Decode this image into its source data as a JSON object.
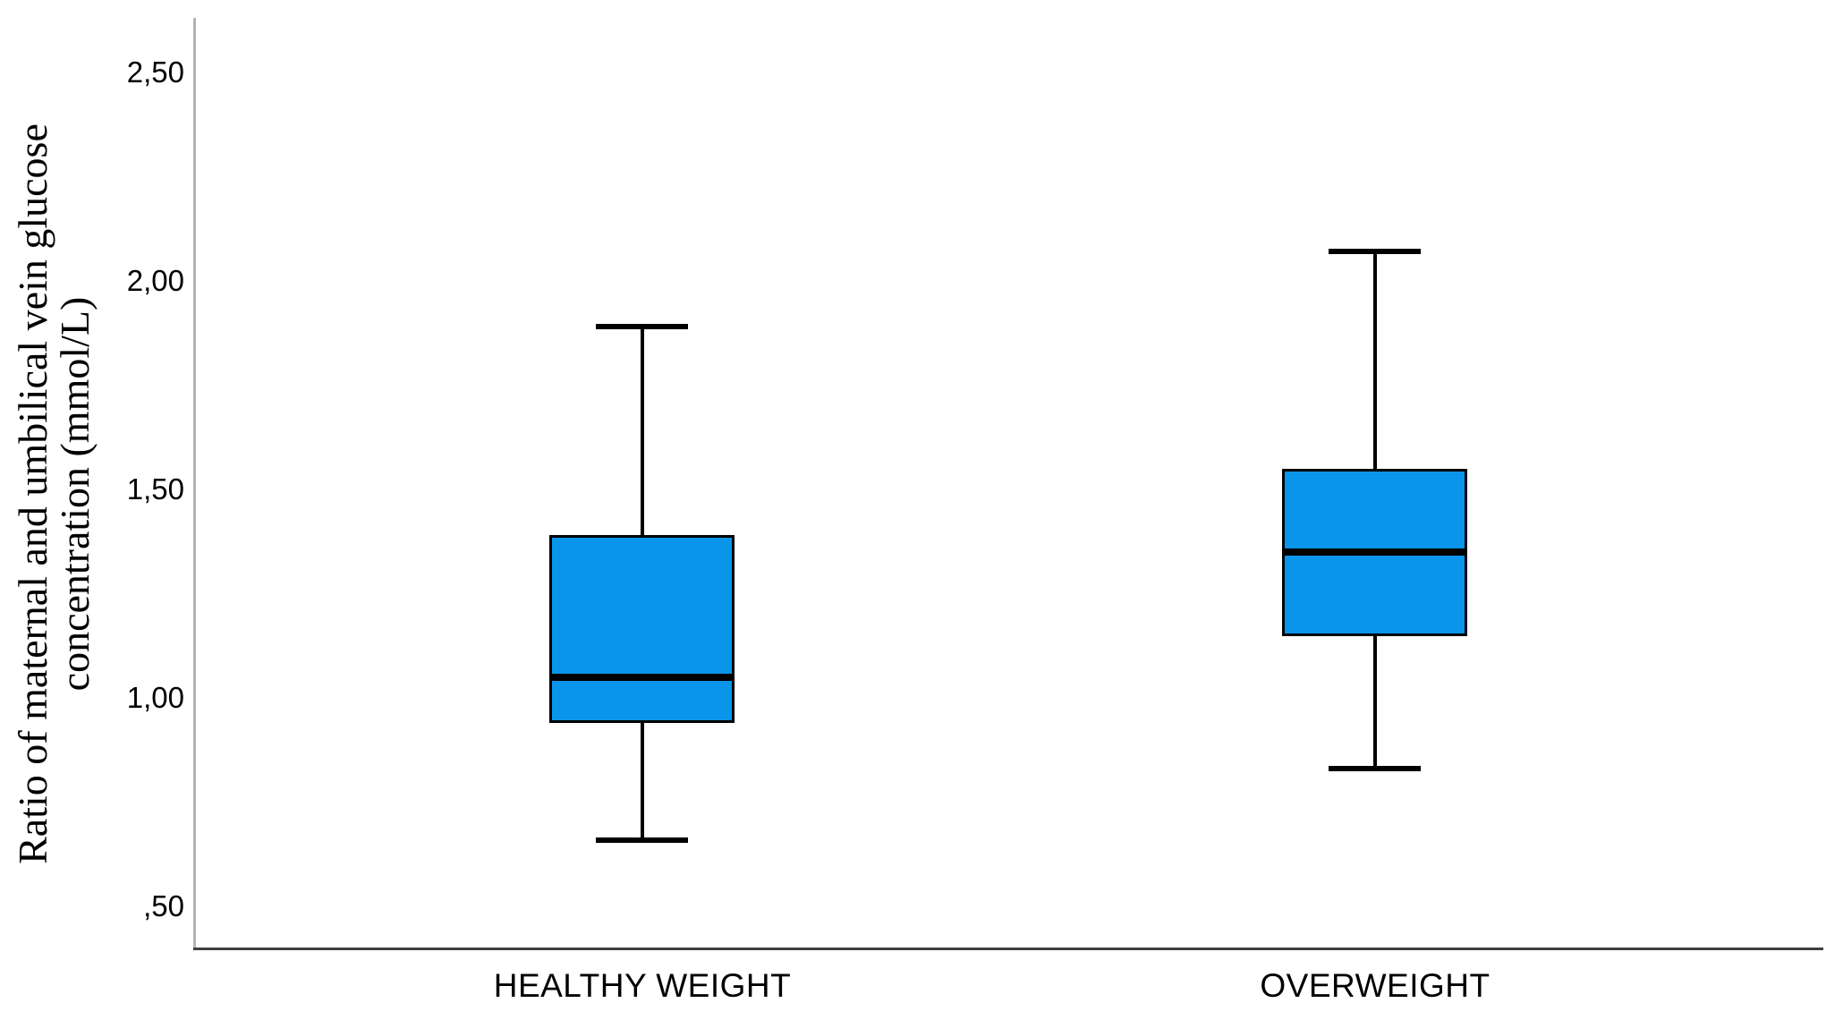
{
  "y_axis": {
    "title_line1": "Ratio of maternal and umbilical vein glucose",
    "title_line2": "concentration (mmol/L)"
  },
  "chart_data": {
    "type": "boxplot",
    "title": "",
    "xlabel": "",
    "ylabel": "Ratio of maternal and umbilical vein glucose concentration (mmol/L)",
    "categories": [
      "HEALTHY WEIGHT",
      "OVERWEIGHT"
    ],
    "series": [
      {
        "name": "HEALTHY WEIGHT",
        "whisker_low": 0.66,
        "q1": 0.94,
        "median": 1.05,
        "q3": 1.39,
        "whisker_high": 1.89
      },
      {
        "name": "OVERWEIGHT",
        "whisker_low": 0.83,
        "q1": 1.15,
        "median": 1.35,
        "q3": 1.55,
        "whisker_high": 2.07
      }
    ],
    "yticks": [
      0.5,
      1.0,
      1.5,
      2.0,
      2.5
    ],
    "ytick_labels": [
      ",50",
      "1,00",
      "1,50",
      "2,00",
      "2,50"
    ],
    "ylim": [
      0.4,
      2.63
    ],
    "grid": false,
    "legend": "none",
    "box_fill_color": "#0995E9",
    "box_border_color": "#000000",
    "y_axis_line_color": "#b3b3b3",
    "x_axis_line_color": "#3f3f3f"
  }
}
